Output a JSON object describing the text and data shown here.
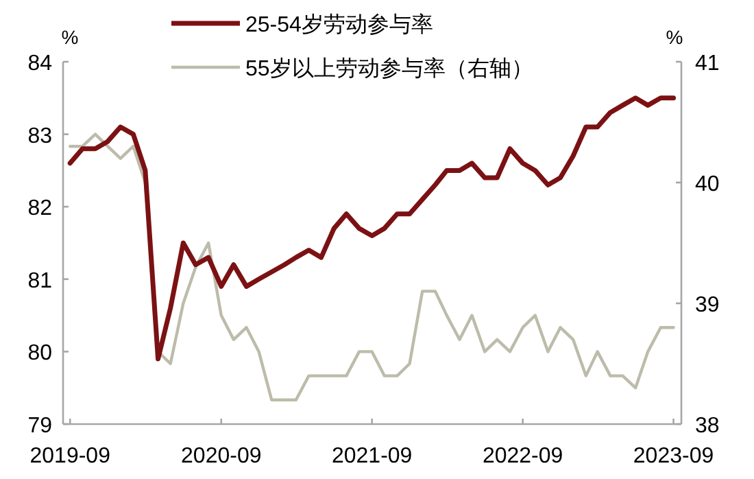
{
  "chart_data": {
    "type": "line",
    "ylabel": "%",
    "y2label": "%",
    "legend": "top",
    "x": [
      "2019-09",
      "2019-10",
      "2019-11",
      "2019-12",
      "2020-01",
      "2020-02",
      "2020-03",
      "2020-04",
      "2020-05",
      "2020-06",
      "2020-07",
      "2020-08",
      "2020-09",
      "2020-10",
      "2020-11",
      "2020-12",
      "2021-01",
      "2021-02",
      "2021-03",
      "2021-04",
      "2021-05",
      "2021-06",
      "2021-07",
      "2021-08",
      "2021-09",
      "2021-10",
      "2021-11",
      "2021-12",
      "2022-01",
      "2022-02",
      "2022-03",
      "2022-04",
      "2022-05",
      "2022-06",
      "2022-07",
      "2022-08",
      "2022-09",
      "2022-10",
      "2022-11",
      "2022-12",
      "2023-01",
      "2023-02",
      "2023-03",
      "2023-04",
      "2023-05",
      "2023-06",
      "2023-07",
      "2023-08",
      "2023-09"
    ],
    "xlim": [
      "2019-08-15",
      "2023-09-20"
    ],
    "xticks": [
      {
        "value": "2019-09",
        "label": "2019-09"
      },
      {
        "value": "2020-09",
        "label": "2020-09"
      },
      {
        "value": "2021-09",
        "label": "2021-09"
      },
      {
        "value": "2022-09",
        "label": "2022-09"
      },
      {
        "value": "2023-09",
        "label": "2023-09"
      }
    ],
    "ylim": [
      79,
      84
    ],
    "yticks": [
      79,
      80,
      81,
      82,
      83,
      84
    ],
    "y2lim": [
      38,
      41
    ],
    "y2ticks": [
      38,
      39,
      40,
      41
    ],
    "series": [
      {
        "name": "25-54岁劳动参与率",
        "color": "#7b1113",
        "values": [
          82.6,
          82.8,
          82.8,
          82.9,
          83.1,
          83.0,
          82.5,
          79.9,
          80.6,
          81.5,
          81.2,
          81.3,
          80.9,
          81.2,
          80.9,
          81.0,
          81.1,
          81.2,
          81.3,
          81.4,
          81.3,
          81.7,
          81.9,
          81.7,
          81.6,
          81.7,
          81.9,
          81.9,
          82.1,
          82.3,
          82.5,
          82.5,
          82.6,
          82.4,
          82.4,
          82.8,
          82.6,
          82.5,
          82.3,
          82.4,
          82.7,
          83.1,
          83.1,
          83.3,
          83.4,
          83.5,
          83.4,
          83.5,
          83.5
        ]
      },
      {
        "name": "55岁以上劳动参与率（右轴）",
        "color": "#bdbcaa",
        "axis": "y2",
        "values": [
          40.3,
          40.3,
          40.4,
          40.3,
          40.2,
          40.3,
          40.0,
          38.6,
          38.5,
          39.0,
          39.3,
          39.5,
          38.9,
          38.7,
          38.8,
          38.6,
          38.2,
          38.2,
          38.2,
          38.4,
          38.4,
          38.4,
          38.4,
          38.6,
          38.6,
          38.4,
          38.4,
          38.5,
          39.1,
          39.1,
          38.9,
          38.7,
          38.9,
          38.6,
          38.7,
          38.6,
          38.8,
          38.9,
          38.6,
          38.8,
          38.7,
          38.4,
          38.6,
          38.4,
          38.4,
          38.3,
          38.6,
          38.8,
          38.8
        ]
      }
    ]
  }
}
